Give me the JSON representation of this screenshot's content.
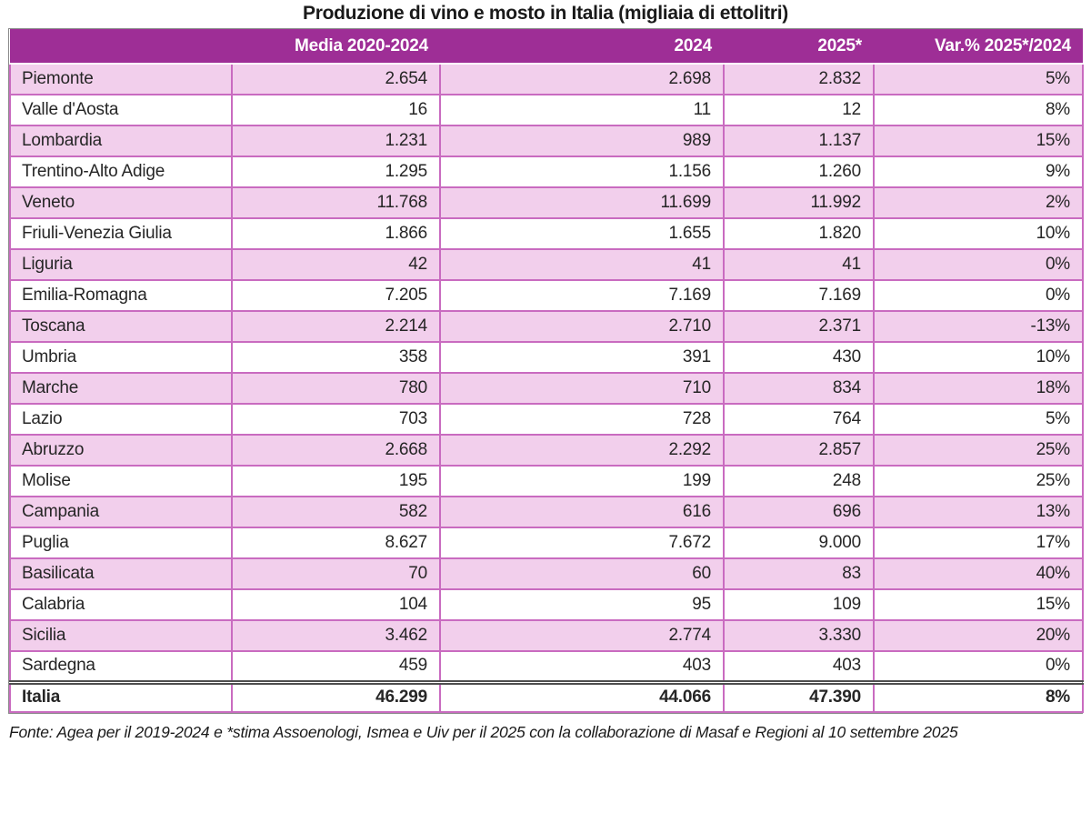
{
  "title": "Produzione di vino e mosto in Italia (migliaia di ettolitri)",
  "source_note": "Fonte: Agea per il 2019-2024 e *stima Assoenologi, Ismea e Uiv per il 2025 con la collaborazione di Masaf e Regioni al 10 settembre 2025",
  "colors": {
    "header_bg": "#9E2E96",
    "header_text": "#FFFFFF",
    "row_pink": "#F2CFEC",
    "row_white": "#FFFFFF",
    "cell_border": "#C96BC0",
    "outer_border": "#8A8A8A",
    "total_separator": "#4F4F4F",
    "body_text": "#262626"
  },
  "chart_data": {
    "type": "table",
    "title": "Produzione di vino e mosto in Italia (migliaia di ettolitri)",
    "unit": "migliaia di ettolitri",
    "columns": [
      "",
      "Media 2020-2024",
      "2024",
      "2025*",
      "Var.% 2025*/2024"
    ],
    "rows": [
      [
        "Piemonte",
        "2.654",
        "2.698",
        "2.832",
        "5%"
      ],
      [
        "Valle d'Aosta",
        "16",
        "11",
        "12",
        "8%"
      ],
      [
        "Lombardia",
        "1.231",
        "989",
        "1.137",
        "15%"
      ],
      [
        "Trentino-Alto Adige",
        "1.295",
        "1.156",
        "1.260",
        "9%"
      ],
      [
        "Veneto",
        "11.768",
        "11.699",
        "11.992",
        "2%"
      ],
      [
        "Friuli-Venezia Giulia",
        "1.866",
        "1.655",
        "1.820",
        "10%"
      ],
      [
        "Liguria",
        "42",
        "41",
        "41",
        "0%"
      ],
      [
        "Emilia-Romagna",
        "7.205",
        "7.169",
        "7.169",
        "0%"
      ],
      [
        "Toscana",
        "2.214",
        "2.710",
        "2.371",
        "-13%"
      ],
      [
        "Umbria",
        "358",
        "391",
        "430",
        "10%"
      ],
      [
        "Marche",
        "780",
        "710",
        "834",
        "18%"
      ],
      [
        "Lazio",
        "703",
        "728",
        "764",
        "5%"
      ],
      [
        "Abruzzo",
        "2.668",
        "2.292",
        "2.857",
        "25%"
      ],
      [
        "Molise",
        "195",
        "199",
        "248",
        "25%"
      ],
      [
        "Campania",
        "582",
        "616",
        "696",
        "13%"
      ],
      [
        "Puglia",
        "8.627",
        "7.672",
        "9.000",
        "17%"
      ],
      [
        "Basilicata",
        "70",
        "60",
        "83",
        "40%"
      ],
      [
        "Calabria",
        "104",
        "95",
        "109",
        "15%"
      ],
      [
        "Sicilia",
        "3.462",
        "2.774",
        "3.330",
        "20%"
      ],
      [
        "Sardegna",
        "459",
        "403",
        "403",
        "0%"
      ]
    ],
    "total_row": [
      "Italia",
      "46.299",
      "44.066",
      "47.390",
      "8%"
    ],
    "layout": {
      "stripe_pattern": "alternating pink/white starting with pink",
      "numeric_alignment": "right",
      "thousands_separator": "."
    }
  }
}
